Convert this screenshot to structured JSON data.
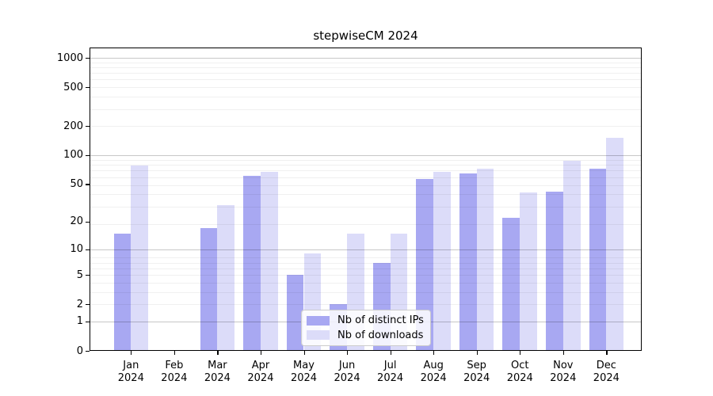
{
  "figure": {
    "background": "#ffffff"
  },
  "chart_data": {
    "type": "bar",
    "title": "stepwiseCM 2024",
    "categories": [
      "Jan 2024",
      "Feb 2024",
      "Mar 2024",
      "Apr 2024",
      "May 2024",
      "Jun 2024",
      "Jul 2024",
      "Aug 2024",
      "Sep 2024",
      "Oct 2024",
      "Nov 2024",
      "Dec 2024"
    ],
    "series": [
      {
        "name": "Nb of distinct IPs",
        "color": "#a8a8f2",
        "values": [
          15,
          0,
          17,
          61,
          5,
          2,
          7,
          57,
          64,
          22,
          42,
          73
        ]
      },
      {
        "name": "Nb of downloads",
        "color": "#dcdcf9",
        "values": [
          78,
          0,
          30,
          67,
          9,
          15,
          15,
          67,
          72,
          41,
          88,
          150
        ]
      }
    ],
    "yscale": "log1p",
    "yticks": [
      0,
      1,
      2,
      5,
      10,
      20,
      50,
      100,
      200,
      500,
      1000
    ],
    "major_grid_values": [
      1,
      10,
      100,
      1000
    ],
    "ylim": [
      0,
      1270
    ],
    "xlabel": "",
    "ylabel": "",
    "grid": true,
    "legend_position": "lower center",
    "grid_major_color": "rgba(0,0,0,0.22)",
    "grid_minor_color": "rgba(0,0,0,0.06)"
  }
}
